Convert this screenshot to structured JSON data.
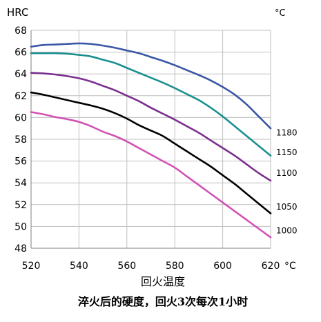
{
  "chart_data": {
    "type": "line",
    "ylabel": "HRC",
    "unit_label": "°C",
    "x_unit": "°C",
    "xlabel": "回火温度",
    "caption": "淬火后的硬度，回火3次每次1小时",
    "xlim": [
      520,
      620
    ],
    "ylim": [
      48,
      68
    ],
    "xticks": [
      520,
      540,
      560,
      580,
      600,
      620
    ],
    "yticks": [
      48,
      50,
      52,
      54,
      56,
      58,
      60,
      62,
      64,
      66,
      68
    ],
    "grid": true,
    "series": [
      {
        "name": "1180",
        "color": "#3a56a6",
        "x": [
          520,
          525,
          530,
          535,
          540,
          545,
          550,
          555,
          560,
          565,
          570,
          575,
          580,
          585,
          590,
          595,
          600,
          605,
          610,
          615,
          620
        ],
        "y": [
          66.5,
          66.65,
          66.7,
          66.75,
          66.8,
          66.75,
          66.6,
          66.4,
          66.15,
          65.9,
          65.55,
          65.2,
          64.8,
          64.35,
          63.9,
          63.4,
          62.8,
          62.1,
          61.2,
          60.1,
          59.0
        ]
      },
      {
        "name": "1150",
        "color": "#1a8f8f",
        "x": [
          520,
          525,
          530,
          535,
          540,
          545,
          550,
          555,
          560,
          565,
          570,
          575,
          580,
          585,
          590,
          595,
          600,
          605,
          610,
          615,
          620
        ],
        "y": [
          65.9,
          65.9,
          65.9,
          65.85,
          65.75,
          65.6,
          65.3,
          65.0,
          64.55,
          64.1,
          63.65,
          63.2,
          62.7,
          62.15,
          61.6,
          60.9,
          60.1,
          59.2,
          58.3,
          57.4,
          56.5
        ]
      },
      {
        "name": "1100",
        "color": "#7b2f8e",
        "x": [
          520,
          525,
          530,
          535,
          540,
          545,
          550,
          555,
          560,
          565,
          570,
          575,
          580,
          585,
          590,
          595,
          600,
          605,
          610,
          615,
          620
        ],
        "y": [
          64.1,
          64.05,
          63.95,
          63.8,
          63.6,
          63.3,
          62.9,
          62.5,
          62.0,
          61.5,
          60.9,
          60.35,
          59.8,
          59.2,
          58.6,
          57.9,
          57.2,
          56.5,
          55.7,
          54.9,
          54.2
        ]
      },
      {
        "name": "1050",
        "color": "#000000",
        "x": [
          520,
          525,
          530,
          535,
          540,
          545,
          550,
          555,
          560,
          565,
          570,
          575,
          580,
          585,
          590,
          595,
          600,
          605,
          610,
          615,
          620
        ],
        "y": [
          62.3,
          62.1,
          61.85,
          61.6,
          61.35,
          61.1,
          60.8,
          60.4,
          59.9,
          59.3,
          58.8,
          58.3,
          57.6,
          56.9,
          56.2,
          55.5,
          54.7,
          53.9,
          53.0,
          52.1,
          51.2
        ]
      },
      {
        "name": "1000",
        "color": "#d252b4",
        "x": [
          520,
          525,
          530,
          535,
          540,
          545,
          550,
          555,
          560,
          565,
          570,
          575,
          580,
          585,
          590,
          595,
          600,
          605,
          610,
          615,
          620
        ],
        "y": [
          60.5,
          60.3,
          60.05,
          59.85,
          59.6,
          59.2,
          58.7,
          58.3,
          57.8,
          57.2,
          56.6,
          56.0,
          55.4,
          54.6,
          53.8,
          53.0,
          52.2,
          51.4,
          50.6,
          49.8,
          49.0
        ]
      }
    ],
    "series_label_values": [
      58.6,
      56.8,
      54.9,
      51.8,
      49.6
    ]
  }
}
